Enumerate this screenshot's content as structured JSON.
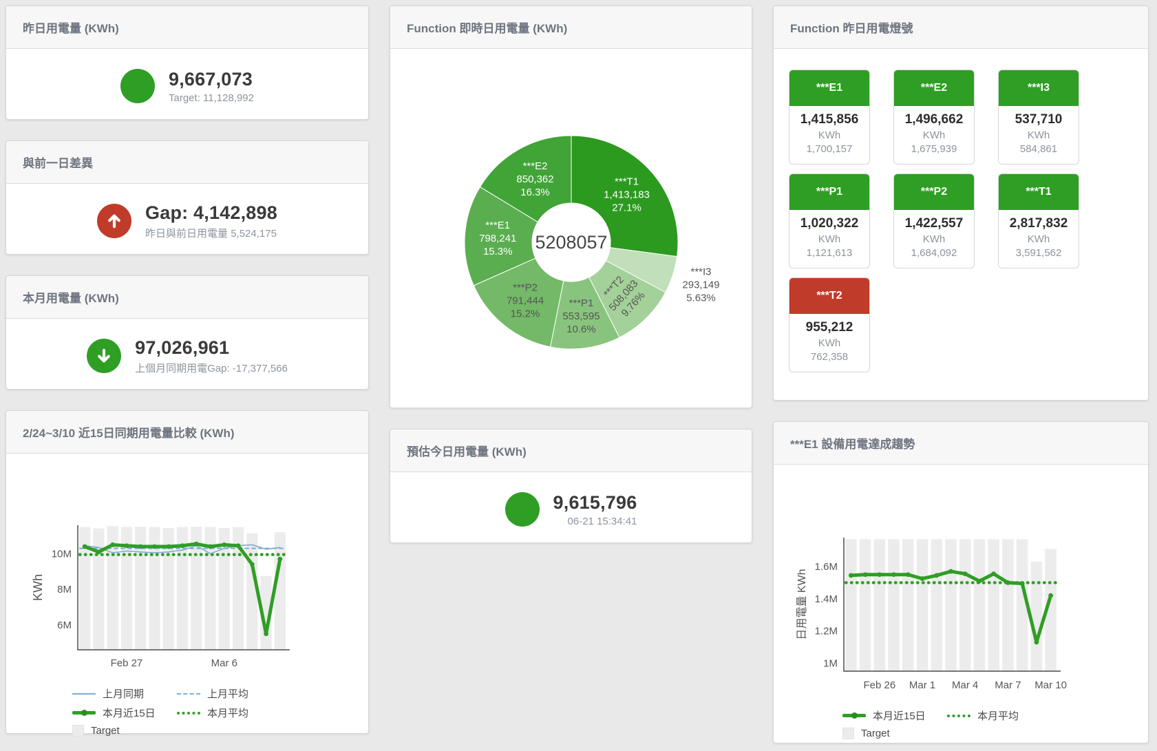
{
  "colors": {
    "green": "#2f9e24",
    "red": "#c13b2a",
    "blue": "#7bacd4",
    "target_bar": "#ececec",
    "title_text": "#6e7580",
    "value_text": "#3a3a3a",
    "muted_text": "#8d939e"
  },
  "panels": {
    "yesterday": {
      "title": "昨日用電量 (KWh)",
      "value": "9,667,073",
      "subtitle": "Target: 11,128,992",
      "status_icon": "green-circle"
    },
    "day_gap": {
      "title": "與前一日差異",
      "value": "Gap: 4,142,898",
      "subtitle": "昨日與前日用電量 5,524,175",
      "status_icon": "red-up-arrow"
    },
    "month": {
      "title": "本月用電量 (KWh)",
      "value": "97,026,961",
      "subtitle": "上個月同期用電Gap: -17,377,566",
      "status_icon": "green-down-arrow"
    },
    "realtime": {
      "title": "Function 即時日用電量 (KWh)"
    },
    "estimate": {
      "title": "預估今日用電量 (KWh)",
      "value": "9,615,796",
      "subtitle": "06-21 15:34:41",
      "status_icon": "green-circle"
    },
    "lights": {
      "title": "Function 昨日用電燈號",
      "unit": "KWh",
      "tiles": [
        {
          "name": "***E1",
          "value": "1,415,856",
          "target": "1,700,157",
          "status": "green"
        },
        {
          "name": "***E2",
          "value": "1,496,662",
          "target": "1,675,939",
          "status": "green"
        },
        {
          "name": "***I3",
          "value": "537,710",
          "target": "584,861",
          "status": "green"
        },
        {
          "name": "***P1",
          "value": "1,020,322",
          "target": "1,121,613",
          "status": "green"
        },
        {
          "name": "***P2",
          "value": "1,422,557",
          "target": "1,684,092",
          "status": "green"
        },
        {
          "name": "***T1",
          "value": "2,817,832",
          "target": "3,591,562",
          "status": "green"
        },
        {
          "name": "***T2",
          "value": "955,212",
          "target": "762,358",
          "status": "red"
        }
      ]
    },
    "compare": {
      "title": "2/24~3/10 近15日同期用電量比較 (KWh)"
    },
    "trend": {
      "title": "***E1 設備用電達成趨勢"
    }
  },
  "chart_data": [
    {
      "id": "donut-chart",
      "type": "pie",
      "title": "Function 即時日用電量 (KWh)",
      "center_total": "5208057",
      "slices": [
        {
          "name": "***T1",
          "value": "1,413,183",
          "pct": "27.1%",
          "share": 27.1,
          "color": "#2c9a1f",
          "text_color": "#ffffff"
        },
        {
          "name": "***I3",
          "value": "293,149",
          "pct": "5.63%",
          "share": 5.63,
          "color": "#c1dfb8",
          "text_color": "#555555",
          "label_outside": true
        },
        {
          "name": "***T2",
          "value": "508,083",
          "pct": "9.76%",
          "share": 9.76,
          "color": "#a3d199",
          "text_color": "#555555",
          "label_rotate": -48
        },
        {
          "name": "***P1",
          "value": "553,595",
          "pct": "10.6%",
          "share": 10.6,
          "color": "#89c47e",
          "text_color": "#555555"
        },
        {
          "name": "***P2",
          "value": "791,444",
          "pct": "15.2%",
          "share": 15.2,
          "color": "#73b968",
          "text_color": "#555555"
        },
        {
          "name": "***E1",
          "value": "798,241",
          "pct": "15.3%",
          "share": 15.3,
          "color": "#5aae4f",
          "text_color": "#ffffff"
        },
        {
          "name": "***E2",
          "value": "850,362",
          "pct": "16.3%",
          "share": 16.3,
          "color": "#41a437",
          "text_color": "#ffffff"
        }
      ]
    },
    {
      "id": "compare-chart",
      "type": "line",
      "title": "2/24~3/10 近15日同期用電量比較 (KWh)",
      "ylabel": "KWh",
      "unit": "M KWh",
      "ylim": [
        4.6,
        11.6
      ],
      "yticks": [
        {
          "v": 6,
          "label": "6M"
        },
        {
          "v": 8,
          "label": "8M"
        },
        {
          "v": 10,
          "label": "10M"
        }
      ],
      "dates": [
        "2/24",
        "2/25",
        "2/26",
        "2/27",
        "2/28",
        "3/1",
        "3/2",
        "3/3",
        "3/4",
        "3/5",
        "3/6",
        "3/7",
        "3/8",
        "3/9",
        "3/10"
      ],
      "xticks": [
        {
          "index": 3,
          "label": "Feb 27"
        },
        {
          "index": 10,
          "label": "Mar 6"
        }
      ],
      "target_bars": {
        "name": "Target",
        "values": [
          11.5,
          11.42,
          11.55,
          11.5,
          11.52,
          11.5,
          11.45,
          11.5,
          11.52,
          11.5,
          11.45,
          11.5,
          11.15,
          8.75,
          11.2
        ]
      },
      "series": [
        {
          "name": "上月平均",
          "kind": "avg",
          "value": 10.3,
          "color": "#7bacd4",
          "width": 2,
          "dash": "5,5"
        },
        {
          "name": "本月平均",
          "kind": "avg",
          "value": 9.95,
          "color": "#2f9e24",
          "width": 4.5,
          "dash": "0.5,7.5"
        },
        {
          "name": "上月同期",
          "kind": "line",
          "color": "#7bacd4",
          "width": 1.6,
          "values": [
            10.45,
            10.35,
            10.05,
            10.15,
            10.1,
            10.05,
            10.1,
            10.2,
            10.45,
            10.0,
            10.3,
            10.45,
            10.5,
            10.25,
            10.35
          ]
        },
        {
          "name": "本月近15日",
          "kind": "line",
          "color": "#2f9e24",
          "width": 5,
          "markers": true,
          "values": [
            10.4,
            10.1,
            10.5,
            10.45,
            10.4,
            10.4,
            10.4,
            10.45,
            10.55,
            10.4,
            10.5,
            10.45,
            9.4,
            5.5,
            9.7
          ]
        }
      ],
      "legend": [
        {
          "label": "上月同期",
          "swatch": "blue-line"
        },
        {
          "label": "上月平均",
          "swatch": "blue-dash"
        },
        {
          "label": "本月近15日",
          "swatch": "green-line"
        },
        {
          "label": "本月平均",
          "swatch": "green-dot"
        },
        {
          "label": "Target",
          "swatch": "gray-box"
        }
      ]
    },
    {
      "id": "trend-chart",
      "type": "line",
      "title": "***E1 設備用電達成趨勢",
      "ylabel": "日用電量 KWh",
      "unit": "M KWh",
      "ylim": [
        0.95,
        1.78
      ],
      "yticks": [
        {
          "v": 1,
          "label": "1M"
        },
        {
          "v": 1.2,
          "label": "1.2M"
        },
        {
          "v": 1.4,
          "label": "1.4M"
        },
        {
          "v": 1.6,
          "label": "1.6M"
        }
      ],
      "dates": [
        "2/24",
        "2/25",
        "2/26",
        "2/27",
        "2/28",
        "3/1",
        "3/2",
        "3/3",
        "3/4",
        "3/5",
        "3/6",
        "3/7",
        "3/8",
        "3/9",
        "3/10"
      ],
      "xticks": [
        {
          "index": 2,
          "label": "Feb 26"
        },
        {
          "index": 5,
          "label": "Mar 1"
        },
        {
          "index": 8,
          "label": "Mar 4"
        },
        {
          "index": 11,
          "label": "Mar 7"
        },
        {
          "index": 14,
          "label": "Mar 10"
        }
      ],
      "target_bars": {
        "name": "Target",
        "values": [
          1.77,
          1.77,
          1.77,
          1.77,
          1.77,
          1.77,
          1.77,
          1.77,
          1.77,
          1.77,
          1.77,
          1.77,
          1.77,
          1.63,
          1.71
        ]
      },
      "series": [
        {
          "name": "本月平均",
          "kind": "avg",
          "value": 1.5,
          "color": "#2f9e24",
          "width": 4.5,
          "dash": "0.5,7.5"
        },
        {
          "name": "本月近15日",
          "kind": "line",
          "color": "#2f9e24",
          "width": 5,
          "markers": true,
          "values": [
            1.545,
            1.55,
            1.55,
            1.55,
            1.55,
            1.525,
            1.545,
            1.57,
            1.555,
            1.51,
            1.555,
            1.5,
            1.495,
            1.13,
            1.42
          ]
        }
      ],
      "legend": [
        {
          "label": "本月近15日",
          "swatch": "green-line"
        },
        {
          "label": "本月平均",
          "swatch": "green-dot"
        },
        {
          "label": "Target",
          "swatch": "gray-box"
        }
      ]
    }
  ]
}
